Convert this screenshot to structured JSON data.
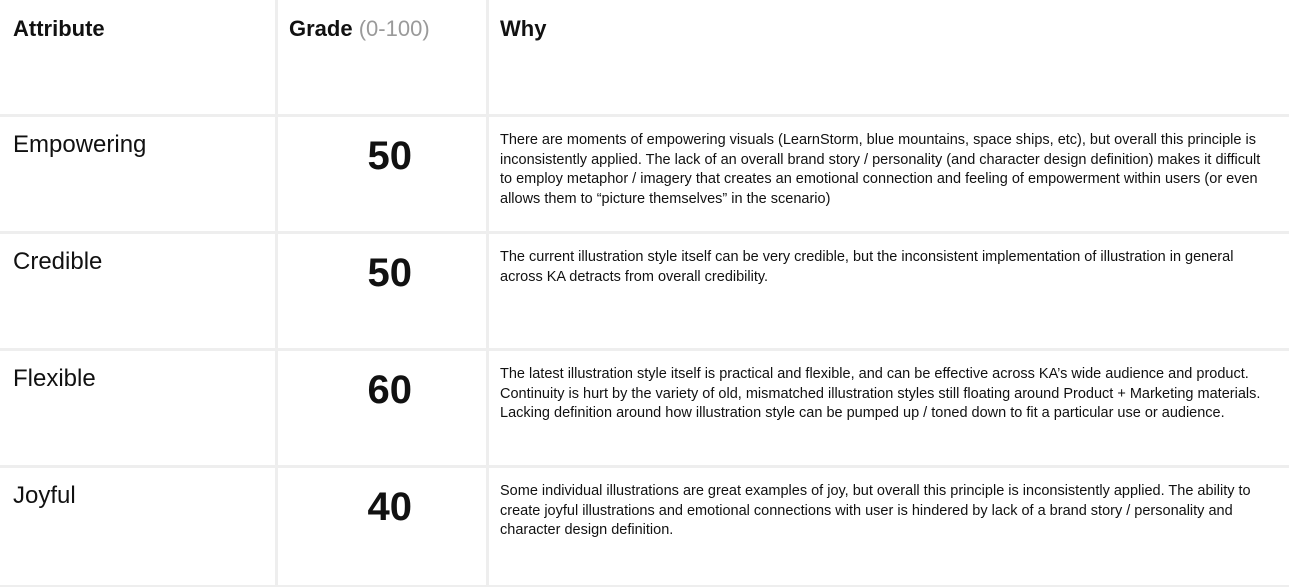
{
  "header": {
    "attribute": "Attribute",
    "grade": "Grade",
    "grade_range": "(0-100)",
    "why": "Why"
  },
  "rows": [
    {
      "attribute": "Empowering",
      "grade": "50",
      "why": "There are moments of empowering visuals (LearnStorm, blue mountains, space ships, etc), but overall this principle is inconsistently applied. The lack of an overall brand story / personality (and character design definition) makes it difficult to employ metaphor / imagery that creates an emotional connection and feeling of empowerment within users (or even allows them to “picture themselves” in the scenario)"
    },
    {
      "attribute": "Credible",
      "grade": "50",
      "why": "The current illustration style itself can be very credible, but the inconsistent implementation of illustration in general across KA detracts from overall credibility."
    },
    {
      "attribute": "Flexible",
      "grade": "60",
      "why": "The latest illustration style itself is practical and flexible, and can be effective across KA’s wide audience and product. Continuity is hurt by the variety of old, mismatched illustration styles still floating around Product + Marketing materials. Lacking definition around how illustration style can be pumped up / toned down to fit a particular use or audience."
    },
    {
      "attribute": "Joyful",
      "grade": "40",
      "why": "Some individual illustrations are great examples of joy, but overall this principle is inconsistently applied. The ability to create joyful illustrations and emotional connections with user is hindered by lack of a brand story / personality and character design definition."
    }
  ]
}
